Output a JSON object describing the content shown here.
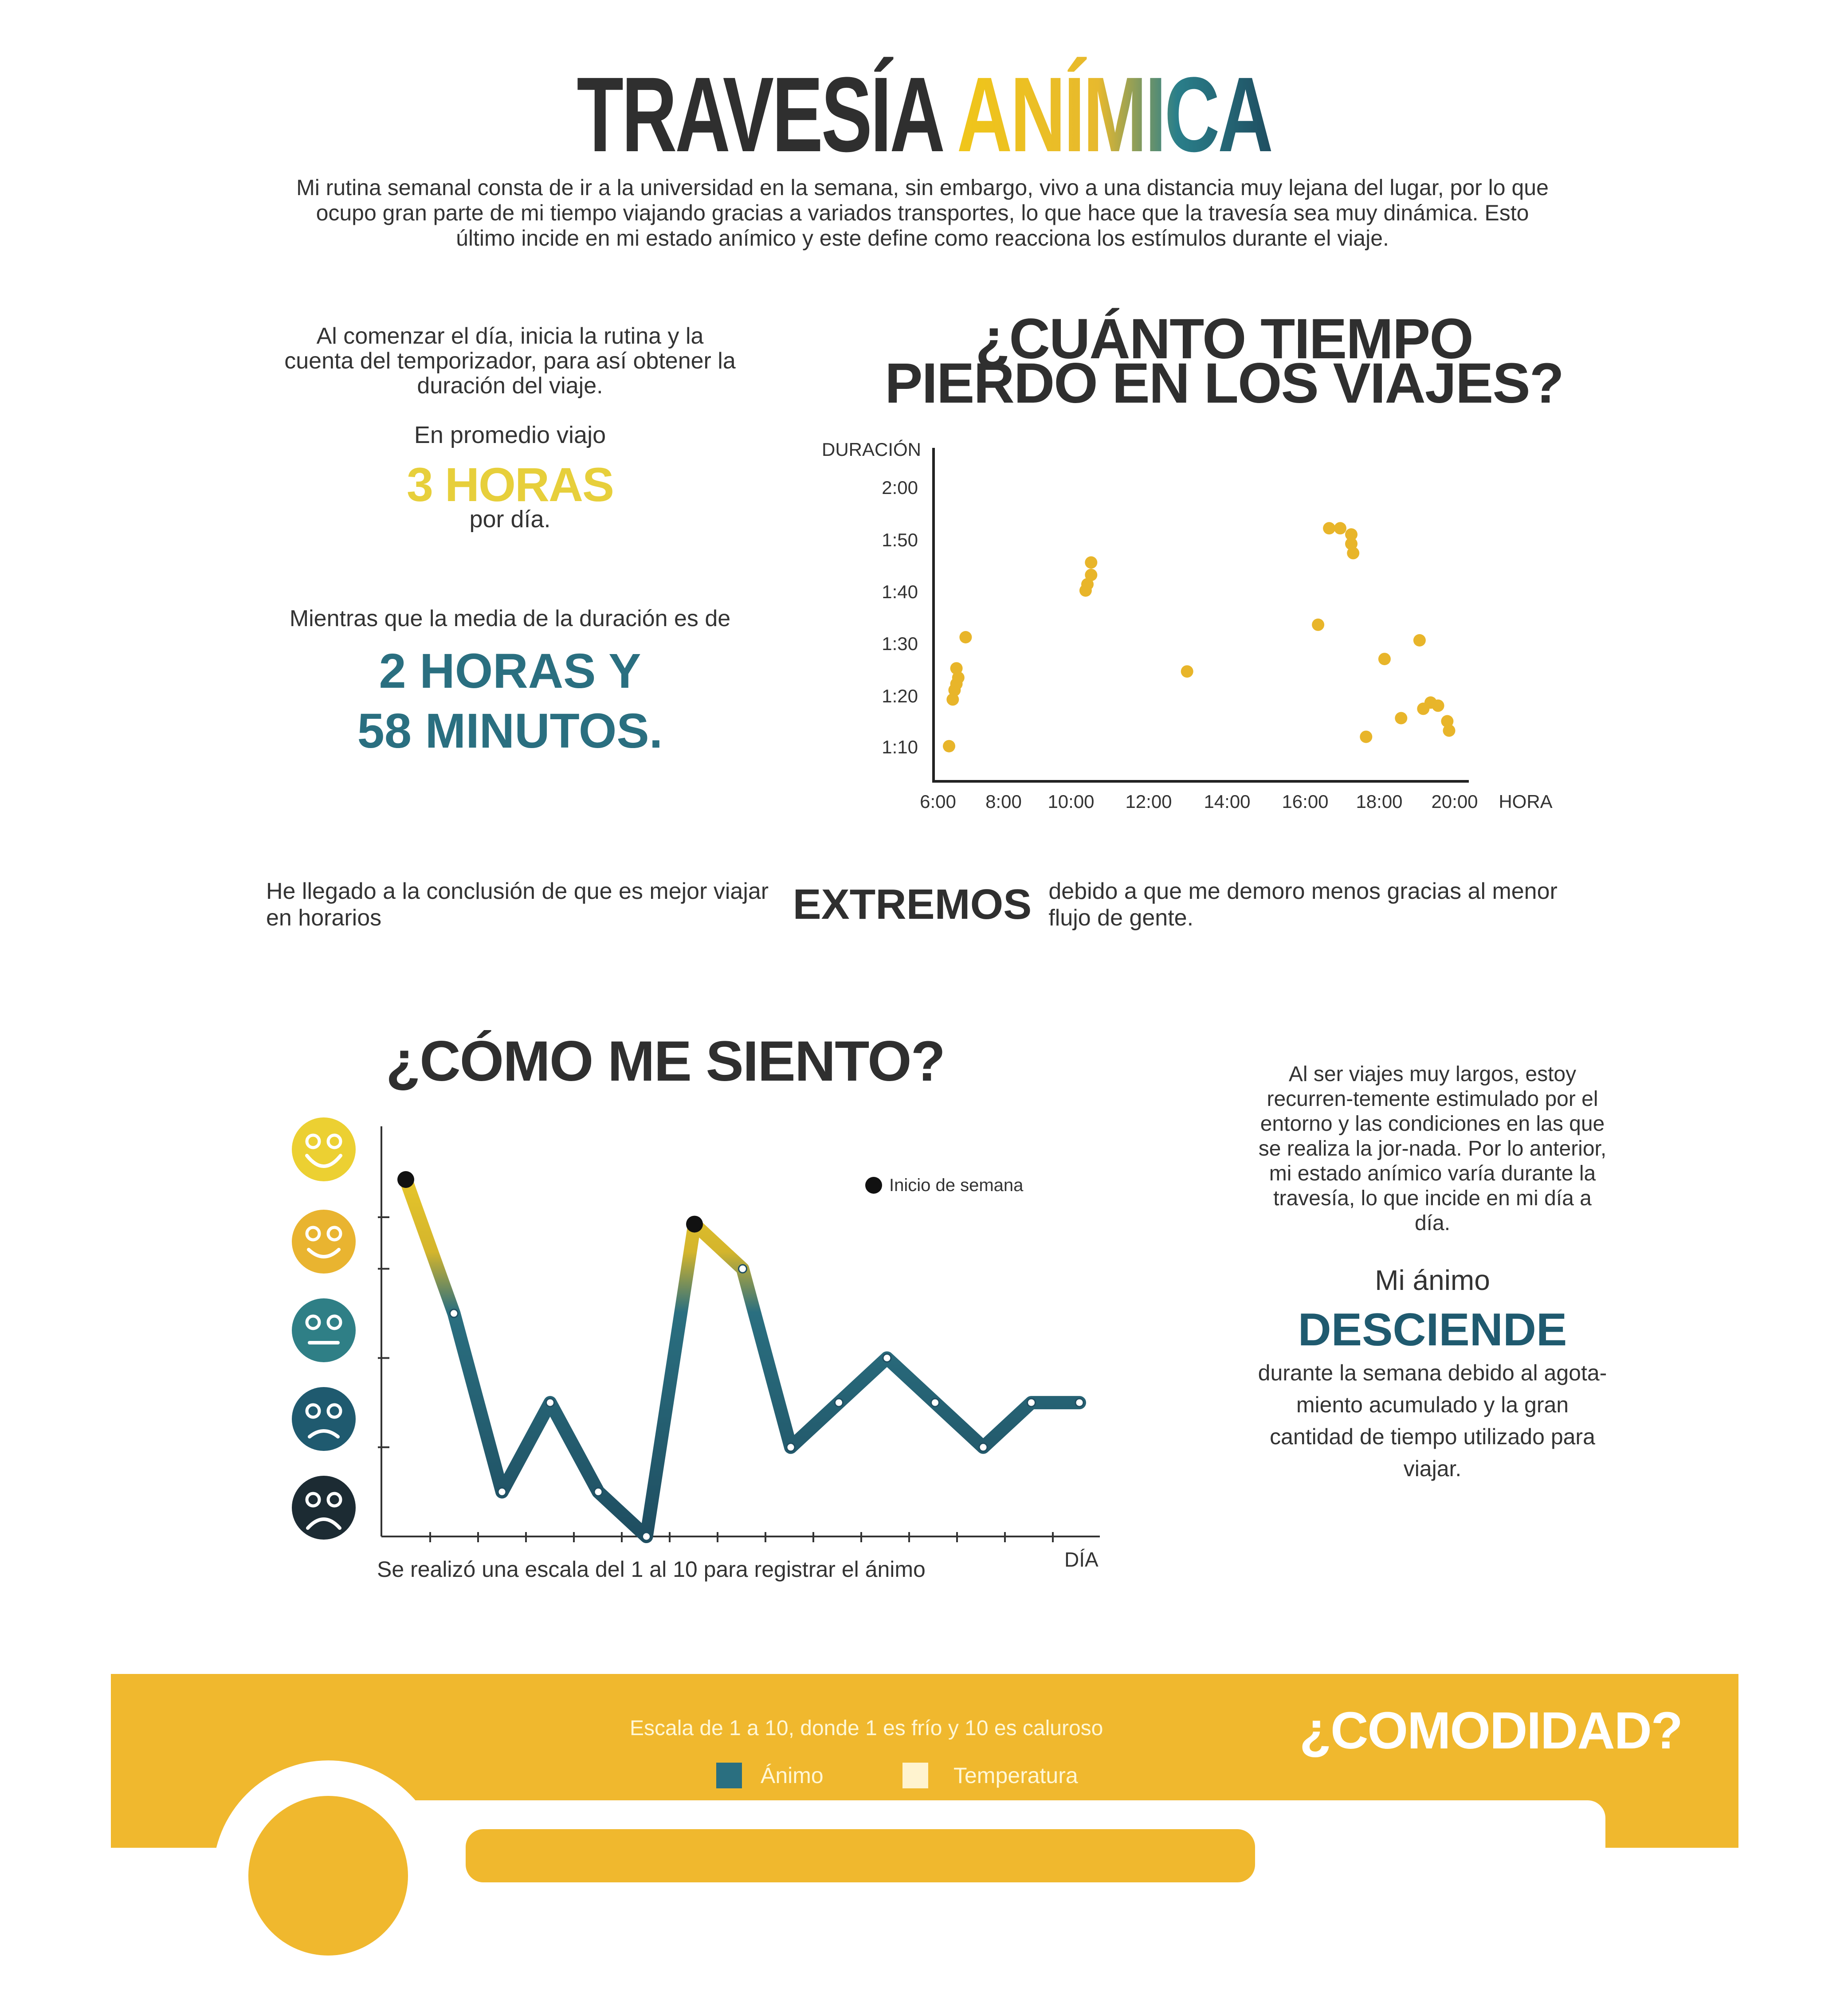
{
  "header": {
    "title_part1": "TRAVESÍA",
    "title_part2": "ANÍMICA",
    "intro": "Mi rutina semanal consta de ir a la universidad en la semana,  sin embargo, vivo a una distancia muy lejana del lugar, por lo que ocupo gran parte de mi tiempo viajando gracias a variados transportes, lo que hace que la travesía sea muy dinámica.  Esto último incide en mi estado anímico y este define como reacciona los estímulos durante el viaje."
  },
  "travel_stats": {
    "intro": "Al comenzar el día, inicia la rutina y la cuenta del temporizador, para así obtener la duración del viaje.",
    "average_label": "En promedio viajo",
    "average_value": "3 HORAS",
    "average_unit": "por día.",
    "median_label": "Mientras que la media de la duración es de",
    "median_value_line1": "2 HORAS Y",
    "median_value_line2": "58 MINUTOS."
  },
  "conclusion": {
    "before": "He llegado a la conclusión de que es mejor viajar en horarios",
    "emphasis": "EXTREMOS",
    "after": "debido a que me demoro menos gracias al menor flujo de gente."
  },
  "mood_section": {
    "title": "¿CÓMO ME SIENTO?",
    "text": "Al ser viajes muy largos, estoy recurren-temente estimulado por el entorno y las condiciones en las que se realiza la jor-nada. Por lo anterior, mi estado anímico varía durante la travesía, lo que incide en mi día a día.",
    "anim_label": "Mi ánimo",
    "anim_value": "DESCIENDE",
    "anim_desc": "durante la semana debido al agota-miento acumulado y la gran cantidad de tiempo utilizado para viajar.",
    "note": "Se realizó una escala del 1 al 10 para registrar el ánimo",
    "xlabel": "DÍA",
    "legend": "Inicio de semana",
    "faces": [
      {
        "icon": "very-happy-face-icon",
        "color": "#ecd032"
      },
      {
        "icon": "happy-face-icon",
        "color": "#e9b430"
      },
      {
        "icon": "neutral-face-icon",
        "color": "#2f7f86"
      },
      {
        "icon": "sad-face-icon",
        "color": "#1f5a6f"
      },
      {
        "icon": "very-sad-face-icon",
        "color": "#1c2b33"
      }
    ]
  },
  "comfort_section": {
    "title": "¿COMODIDAD?",
    "scale_text": "Escala de 1 a 10, donde 1 es frío y 10 es caluroso",
    "legend_anim": "Ánimo",
    "legend_temp": "Temperatura",
    "colors": {
      "band": "#f0b82e",
      "anim": "#2a6f80",
      "temp": "#fff3cf"
    }
  },
  "chart_data": [
    {
      "type": "scatter",
      "title": "¿CUÁNTO TIEMPO PIERDO EN LOS VIAJES?",
      "xlabel": "HORA",
      "ylabel": "DURACIÓN",
      "x_ticks": [
        "6:00",
        "8:00",
        "10:00",
        "12:00",
        "14:00",
        "16:00",
        "18:00",
        "20:00"
      ],
      "y_ticks": [
        "1:10",
        "1:20",
        "1:30",
        "1:40",
        "1:50",
        "2:00"
      ],
      "xlim": [
        6,
        20.5
      ],
      "ylim": [
        1.05,
        2.05
      ],
      "color": "#e8b52a",
      "points": [
        {
          "x": 6.3,
          "y": 1.17
        },
        {
          "x": 6.4,
          "y": 1.32
        },
        {
          "x": 6.45,
          "y": 1.35
        },
        {
          "x": 6.5,
          "y": 1.37
        },
        {
          "x": 6.55,
          "y": 1.39
        },
        {
          "x": 6.5,
          "y": 1.42
        },
        {
          "x": 6.75,
          "y": 1.52
        },
        {
          "x": 10.0,
          "y": 1.67
        },
        {
          "x": 10.05,
          "y": 1.69
        },
        {
          "x": 10.15,
          "y": 1.72
        },
        {
          "x": 10.15,
          "y": 1.76
        },
        {
          "x": 12.75,
          "y": 1.41
        },
        {
          "x": 16.3,
          "y": 1.56
        },
        {
          "x": 16.6,
          "y": 1.87
        },
        {
          "x": 16.9,
          "y": 1.87
        },
        {
          "x": 17.2,
          "y": 1.85
        },
        {
          "x": 17.2,
          "y": 1.82
        },
        {
          "x": 17.25,
          "y": 1.79
        },
        {
          "x": 17.6,
          "y": 1.2
        },
        {
          "x": 18.1,
          "y": 1.45
        },
        {
          "x": 18.55,
          "y": 1.26
        },
        {
          "x": 19.05,
          "y": 1.51
        },
        {
          "x": 19.15,
          "y": 1.29
        },
        {
          "x": 19.35,
          "y": 1.31
        },
        {
          "x": 19.55,
          "y": 1.3
        },
        {
          "x": 19.8,
          "y": 1.25
        },
        {
          "x": 19.85,
          "y": 1.22
        }
      ]
    },
    {
      "type": "line",
      "title": "¿CÓMO ME SIENTO?",
      "xlabel": "DÍA",
      "ylabel": "",
      "ylim": [
        1,
        10
      ],
      "series": [
        {
          "values": [
            9,
            6,
            2,
            4,
            2,
            1,
            8,
            7,
            3,
            4,
            5,
            4,
            3,
            4,
            4
          ]
        }
      ],
      "week_start_indices": [
        0,
        6
      ],
      "colors": {
        "low": "#1f5a6f",
        "high": "#e8c02a",
        "marker": "#111111"
      }
    }
  ]
}
